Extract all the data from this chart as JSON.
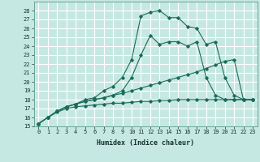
{
  "background_color": "#c6e8e2",
  "grid_color": "#ffffff",
  "line_color": "#1a6b5a",
  "xlabel": "Humidex (Indice chaleur)",
  "xlim": [
    -0.5,
    23.5
  ],
  "ylim": [
    15,
    29
  ],
  "yticks": [
    15,
    16,
    17,
    18,
    19,
    20,
    21,
    22,
    23,
    24,
    25,
    26,
    27,
    28
  ],
  "xticks": [
    0,
    1,
    2,
    3,
    4,
    5,
    6,
    7,
    8,
    9,
    10,
    11,
    12,
    13,
    14,
    15,
    16,
    17,
    18,
    19,
    20,
    21,
    22,
    23
  ],
  "lines": [
    {
      "x": [
        0,
        1,
        2,
        3,
        4,
        5,
        6,
        7,
        8,
        9,
        10,
        11,
        12,
        13,
        14,
        15,
        16,
        17,
        18,
        19,
        20,
        21,
        22,
        23
      ],
      "y": [
        15.3,
        16.0,
        16.6,
        17.0,
        17.2,
        17.3,
        17.4,
        17.5,
        17.6,
        17.6,
        17.7,
        17.8,
        17.8,
        17.9,
        17.9,
        18.0,
        18.0,
        18.0,
        18.0,
        18.0,
        18.0,
        18.0,
        18.0,
        18.0
      ]
    },
    {
      "x": [
        0,
        1,
        2,
        3,
        4,
        5,
        6,
        7,
        8,
        9,
        10,
        11,
        12,
        13,
        14,
        15,
        16,
        17,
        18,
        19,
        20,
        21,
        22,
        23
      ],
      "y": [
        15.3,
        16.0,
        16.7,
        17.2,
        17.5,
        17.8,
        18.0,
        18.2,
        18.5,
        18.7,
        19.0,
        19.3,
        19.6,
        19.9,
        20.2,
        20.5,
        20.8,
        21.1,
        21.5,
        21.9,
        22.3,
        22.5,
        18.0,
        18.0
      ]
    },
    {
      "x": [
        0,
        1,
        2,
        3,
        4,
        5,
        6,
        7,
        8,
        9,
        10,
        11,
        12,
        13,
        14,
        15,
        16,
        17,
        18,
        19,
        20,
        21,
        22,
        23
      ],
      "y": [
        15.3,
        16.0,
        16.7,
        17.2,
        17.5,
        17.8,
        18.0,
        18.2,
        18.5,
        19.0,
        20.5,
        23.0,
        25.2,
        24.2,
        24.5,
        24.5,
        24.0,
        24.5,
        20.5,
        18.5,
        18.0,
        18.0,
        18.0,
        18.0
      ]
    },
    {
      "x": [
        0,
        1,
        2,
        3,
        4,
        5,
        6,
        7,
        8,
        9,
        10,
        11,
        12,
        13,
        14,
        15,
        16,
        17,
        18,
        19,
        20,
        21,
        22,
        23
      ],
      "y": [
        15.3,
        16.0,
        16.7,
        17.2,
        17.5,
        18.0,
        18.2,
        19.0,
        19.5,
        20.5,
        22.5,
        27.4,
        27.8,
        28.0,
        27.2,
        27.2,
        26.2,
        26.0,
        24.2,
        24.5,
        20.5,
        18.5,
        18.0,
        18.0
      ]
    }
  ]
}
